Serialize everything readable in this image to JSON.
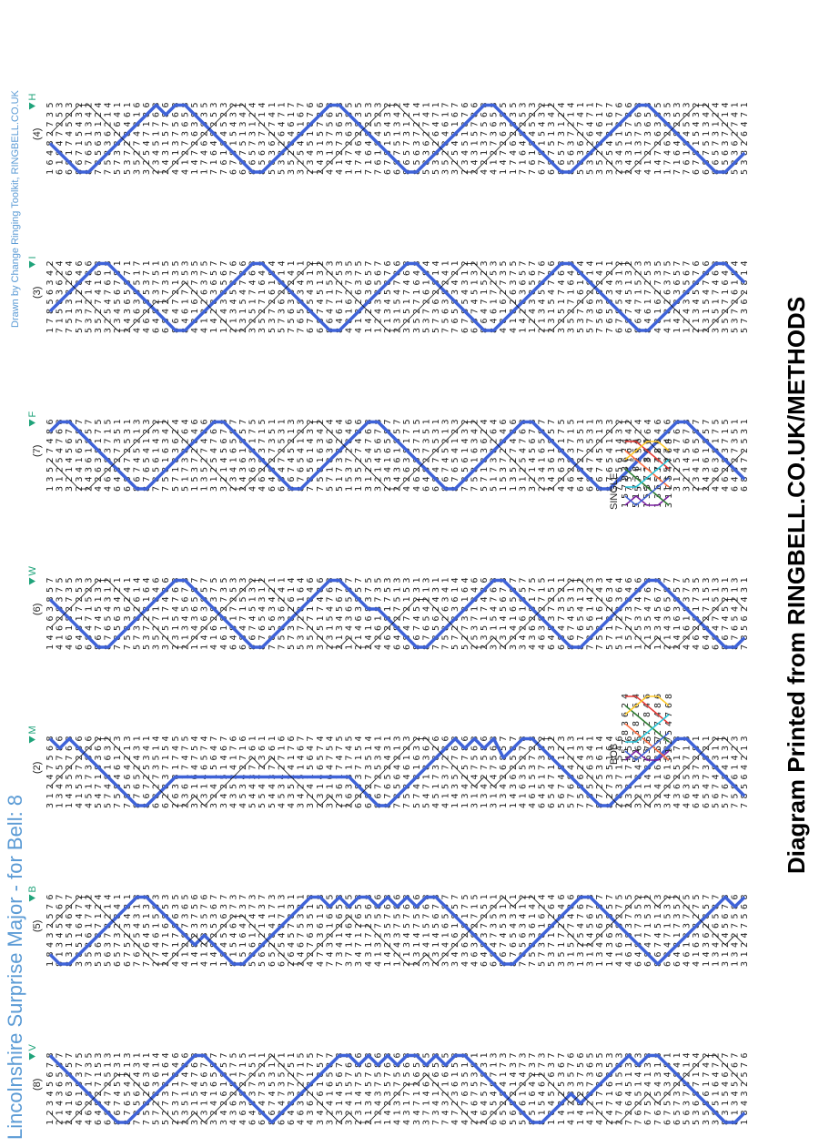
{
  "title": "Lincolnshire Surprise Major - for Bell: 8",
  "credit": "Drawn by Change Ringing Toolkit, RINGBELL.CO.UK",
  "footer": "Diagram Printed from RINGBELL.CO.UK/METHODS",
  "colors": {
    "title": "#5b9bd5",
    "path": "#3f63d8",
    "marker": "#1fa37a",
    "text": "#222222",
    "zigzag": "#111111"
  },
  "columns": [
    {
      "lead_label": "(8)",
      "marker": "V",
      "rows": [
        "12345678",
        "21436587",
        "24163857",
        "42618375",
        "46281735",
        "64827153",
        "68472513",
        "86745231",
        "87654213",
        "78562431",
        "75826341",
        "57283614",
        "52738164",
        "25371846",
        "23517486",
        "32154768",
        "23145678",
        "32416587",
        "34261857",
        "43628175",
        "46382715",
        "64837251",
        "68473521",
        "86745312",
        "68473521",
        "64837251",
        "46382715",
        "43628175",
        "34261857",
        "32416587",
        "23145678",
        "32415768",
        "23147586",
        "21345768",
        "12437586",
        "14235768",
        "41327586",
        "43172568",
        "34712658",
        "37146285",
        "73412658",
        "74321685",
        "47236158",
        "42763518",
        "24675381",
        "26457831",
        "62548713",
        "65284173",
        "56821437",
        "58612473",
        "85164237",
        "81546273",
        "18452637",
        "14825367",
        "41283576",
        "14823756",
        "41287365",
        "42178635",
        "24716853",
        "27461583",
        "72645138",
        "76251483",
        "67524138",
        "76254318",
        "67523481",
        "65732841",
        "56378214",
        "53687124",
        "35861742",
        "38516472",
        "83154627",
        "81345267",
        "18432576"
      ]
    },
    {
      "lead_label": "(5)",
      "marker": "B",
      "rows": [
        "18432576",
        "81345267",
        "83154627",
        "38516472",
        "35861742",
        "53687124",
        "56378214",
        "65732841",
        "67523481",
        "76254318",
        "72645138",
        "27461583",
        "24716853",
        "42178635",
        "41287365",
        "14823756",
        "41283576",
        "14825367",
        "18452637",
        "81546273",
        "85164237",
        "58612473",
        "56821437",
        "65284173",
        "62548713",
        "26457831",
        "24675381",
        "42763518",
        "47236158",
        "74321685",
        "73412658",
        "37146285",
        "34712658",
        "43172568",
        "41327586",
        "14235768",
        "12437586",
        "21345768",
        "23147586",
        "32415768",
        "23145678",
        "32416587",
        "34261857",
        "43628175",
        "46382715",
        "64837251",
        "68473521",
        "86745312",
        "87654321",
        "78563412",
        "75836142",
        "57381624",
        "53718264",
        "35172846",
        "31527486",
        "13254768",
        "31245678",
        "13426587",
        "14362857",
        "41638275",
        "46183725",
        "64817352",
        "68471532",
        "86745123",
        "68471532",
        "64817352",
        "46183725",
        "41638275",
        "14362857",
        "13426587",
        "31245678",
        "13427586",
        "31247568"
      ]
    },
    {
      "lead_label": "(2)",
      "marker": "M",
      "rows": [
        "31247568",
        "13425786",
        "14352768",
        "41537286",
        "45173826",
        "54718362",
        "57481632",
        "75846123",
        "78564213",
        "87652431",
        "86725341",
        "68273514",
        "62837154",
        "26381745",
        "23617475",
        "32164754",
        "23146574",
        "32415647",
        "34251467",
        "43524176",
        "45342716",
        "54437261",
        "55472361",
        "54437261",
        "45342716",
        "43524176",
        "34251467",
        "32415647",
        "23146574",
        "32164754",
        "23617475",
        "26381745",
        "62837154",
        "68273514",
        "86725341",
        "87652431",
        "78564213",
        "75846123",
        "57481632",
        "54718362",
        "45173826",
        "41537286",
        "14352768",
        "13425786",
        "31247568",
        "13427586",
        "31247568",
        "13426857",
        "14362587",
        "41635278",
        "46153728",
        "64517382",
        "65471832",
        "56748123",
        "57684213",
        "75862431",
        "78526341",
        "87253614",
        "82735164",
        "28371546",
        "23817456",
        "32184765",
        "23148675",
        "32416857",
        "34261587",
        "43625178",
        "46352718",
        "64537281",
        "65473821",
        "56748312",
        "57684132",
        "75861423",
        "78564213"
      ]
    },
    {
      "lead_label": "(6)",
      "marker": "W",
      "rows": [
        "14263857",
        "41628375",
        "46182735",
        "64817253",
        "68471523",
        "86745132",
        "87654312",
        "78563421",
        "75836241",
        "57382614",
        "53728164",
        "35271846",
        "32517486",
        "23154768",
        "21345678",
        "12436587",
        "14263857",
        "41628375",
        "46182735",
        "64817253",
        "68471523",
        "86745132",
        "87654312",
        "78563421",
        "75836241",
        "57382614",
        "53728164",
        "35271846",
        "32517486",
        "23154768",
        "21345678",
        "12436587",
        "21463857",
        "24168375",
        "42618735",
        "46281753",
        "64827513",
        "68472153",
        "86745231",
        "87654213",
        "78562431",
        "75826341",
        "57283614",
        "52738164",
        "25371846",
        "23517486",
        "32154768",
        "23145678",
        "32416587",
        "34261857",
        "43628175",
        "46382715",
        "64837251",
        "68473521",
        "86745312",
        "87654132",
        "78561423",
        "75816243",
        "57182634",
        "51728364",
        "15273846",
        "12537486",
        "21354768",
        "12345678",
        "21436587",
        "24163857",
        "42618375",
        "46281735",
        "64827153",
        "68472513",
        "86745231",
        "87654213",
        "78562431"
      ]
    },
    {
      "lead_label": "(7)",
      "marker": "F",
      "rows": [
        "13527486",
        "31254768",
        "32145678",
        "23416587",
        "24361857",
        "42638175",
        "46283715",
        "64827351",
        "68472531",
        "86745213",
        "87654123",
        "78561432",
        "75816342",
        "57183624",
        "51738264",
        "15372846",
        "13527486",
        "31254768",
        "32145678",
        "23416587",
        "24361857",
        "42638175",
        "46283715",
        "64827351",
        "68472531",
        "86745213",
        "87654123",
        "78561432",
        "75816342",
        "57183624",
        "51738264",
        "15372846",
        "13527486",
        "31254768",
        "32145678",
        "23416587",
        "24361857",
        "42638175",
        "46283715",
        "64827351",
        "68472531",
        "86745213",
        "87654123",
        "78561432",
        "75816342",
        "57183624",
        "51738264",
        "15372846",
        "13527486",
        "31254768",
        "32145678",
        "23416587",
        "24361857",
        "42638175",
        "46283715",
        "64827351",
        "68472531",
        "86745213",
        "87654123",
        "78561432",
        "75816342",
        "57183624",
        "51738264",
        "15372846",
        "13527486",
        "31254768",
        "32145678",
        "23416587",
        "24361857",
        "42638175",
        "46283715",
        "64827351",
        "68472531"
      ]
    },
    {
      "lead_label": "(3)",
      "marker": "I",
      "rows": [
        "17856342",
        "71583624",
        "75138264",
        "57312846",
        "53721486",
        "35274168",
        "32547618",
        "23456781",
        "24365871",
        "42638517",
        "46285371",
        "64823751",
        "68427315",
        "86472135",
        "84617253",
        "48162735",
        "41826375",
        "14283657",
        "12438567",
        "21345876",
        "23154786",
        "32517468",
        "35271648",
        "53726184",
        "57362814",
        "75638241",
        "76583421",
        "67854312",
        "68745132",
        "86471523",
        "84617253",
        "48162735",
        "41826375",
        "14283657",
        "12438567",
        "21345876",
        "23154786",
        "32517468",
        "35271648",
        "53726184",
        "57362814",
        "75638241",
        "76583421",
        "67854312",
        "68745132",
        "86471523",
        "84617253",
        "48162735",
        "41826375",
        "14283657",
        "12438567",
        "21345876",
        "23154786",
        "32517468",
        "35271648",
        "53726184",
        "57362814",
        "75638241",
        "76583421",
        "67854312",
        "68745132",
        "86471523",
        "84617253",
        "48162735",
        "41826375",
        "14283657",
        "12438567",
        "21345876",
        "23154786",
        "32517468",
        "35271648",
        "53726184",
        "57362814"
      ]
    },
    {
      "lead_label": "(4)",
      "marker": "H",
      "rows": [
        "16482735",
        "61847253",
        "68174523",
        "86715432",
        "87651342",
        "78563124",
        "75836214",
        "57382641",
        "53728461",
        "35274816",
        "32547186",
        "23451768",
        "24315786",
        "42137568",
        "41273658",
        "14726385",
        "17462835",
        "71648253",
        "76184523",
        "67815432",
        "68751342",
        "86573124",
        "85637214",
        "58362741",
        "53826471",
        "35284617",
        "32548167",
        "23451876",
        "24315786",
        "42137568",
        "41273658",
        "14726385",
        "17462835",
        "71648253",
        "76184523",
        "67815432",
        "68751342",
        "86573124",
        "85637214",
        "58362741",
        "53826471",
        "35284617",
        "32548167",
        "23451876",
        "24315786",
        "42137568",
        "41273658",
        "14726385",
        "17462835",
        "71648253",
        "76184523",
        "67815432",
        "68751342",
        "86573124",
        "85637214",
        "58362741",
        "53826471",
        "35284617",
        "32548167",
        "23451876",
        "24315786",
        "42137568",
        "41273658",
        "14726385",
        "17462835",
        "71648253",
        "76184523",
        "67815432",
        "68751342",
        "86573124",
        "85637214",
        "58362741",
        "53826471"
      ]
    }
  ],
  "calls": [
    {
      "label": "BOB",
      "rows": [
        "15783624",
        "51738264",
        "15372846",
        "13527486",
        "31254768"
      ],
      "line_colors": [
        "#7b1fa2",
        "#2e7d32",
        "#ff7043",
        "#e53935",
        "#3f63d8",
        "#ffca28",
        "#26c6da"
      ]
    },
    {
      "label": "SINGLE",
      "rows": [
        "15783624",
        "51738264",
        "15372846",
        "13527486",
        "31254768"
      ],
      "line_colors": [
        "#7b1fa2",
        "#ff7043",
        "#2e7d32",
        "#e53935",
        "#3f63d8",
        "#ffca28",
        "#26c6da"
      ]
    }
  ]
}
